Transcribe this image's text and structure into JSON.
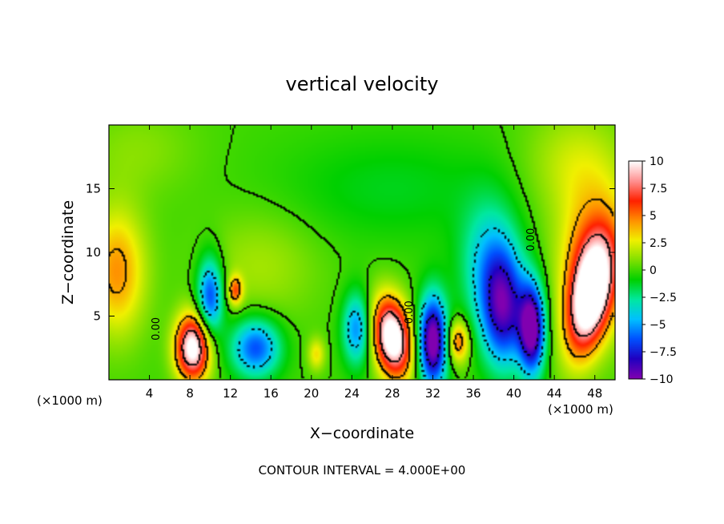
{
  "chart_data": {
    "type": "heatmap",
    "title": "vertical velocity",
    "xlabel": "X−coordinate",
    "ylabel": "Z−coordinate",
    "x_unit_left": "(×1000 m)",
    "x_unit_right": "(×1000 m)",
    "xlim": [
      0,
      50
    ],
    "ylim": [
      0,
      20
    ],
    "x_ticks": [
      4,
      8,
      12,
      16,
      20,
      24,
      28,
      32,
      36,
      40,
      44,
      48
    ],
    "x_tick_labels": [
      "4",
      "8",
      "12",
      "16",
      "20",
      "24",
      "28",
      "32",
      "36",
      "40",
      "44",
      "48"
    ],
    "y_ticks": [
      5,
      10,
      15
    ],
    "y_tick_labels": [
      "5",
      "10",
      "15"
    ],
    "colorbar": {
      "min": -10,
      "max": 10,
      "ticks": [
        10,
        7.5,
        5,
        2.5,
        0,
        -2.5,
        -5,
        -7.5,
        -10
      ],
      "tick_labels": [
        "10",
        "7.5",
        "5",
        "2.5",
        "0",
        "−2.5",
        "−5",
        "−7.5",
        "−10"
      ],
      "colors": [
        "#8000b0",
        "#2000c0",
        "#0050ff",
        "#00c0ff",
        "#00e8a0",
        "#00d000",
        "#80e000",
        "#f0f000",
        "#ff9000",
        "#ff2000",
        "#ff9090",
        "#ffffff"
      ]
    },
    "contour_labels": [
      {
        "text": "0.00",
        "x": 5.0,
        "z": 4.0,
        "rotation": -90
      },
      {
        "text": "0.00",
        "x": 30.0,
        "z": 5.3,
        "rotation": -90
      },
      {
        "text": "0.00",
        "x": 42.0,
        "z": 11.0,
        "rotation": -90
      }
    ],
    "features": [
      {
        "x": 0.8,
        "z": 8.5,
        "w": 4.5,
        "sx": 2.0,
        "sz": 3.5,
        "rot": 0
      },
      {
        "x": 8.3,
        "z": 2.5,
        "w": 11.0,
        "sx": 1.2,
        "sz": 1.8,
        "rot": 0
      },
      {
        "x": 28.0,
        "z": 3.3,
        "w": 12.0,
        "sx": 1.3,
        "sz": 2.2,
        "rot": -0.2
      },
      {
        "x": 34.5,
        "z": 3.0,
        "w": 5.5,
        "sx": 0.8,
        "sz": 1.2,
        "rot": 0
      },
      {
        "x": 47.5,
        "z": 6.5,
        "w": 11.0,
        "sx": 1.4,
        "sz": 3.2,
        "rot": 0.25
      },
      {
        "x": 48.0,
        "z": 9.5,
        "w": 5.0,
        "sx": 2.5,
        "sz": 4.0,
        "rot": 0
      },
      {
        "x": 12.5,
        "z": 7.0,
        "w": 5.0,
        "sx": 0.5,
        "sz": 0.8,
        "rot": 0
      },
      {
        "x": 20.5,
        "z": 2.0,
        "w": 3.0,
        "sx": 0.6,
        "sz": 0.9,
        "rot": 0
      },
      {
        "x": 10.0,
        "z": 6.5,
        "w": -7.0,
        "sx": 0.9,
        "sz": 2.2,
        "rot": 0
      },
      {
        "x": 14.5,
        "z": 2.5,
        "w": -6.5,
        "sx": 1.7,
        "sz": 1.6,
        "rot": 0
      },
      {
        "x": 24.5,
        "z": 4.0,
        "w": -5.5,
        "sx": 1.0,
        "sz": 2.0,
        "rot": 0
      },
      {
        "x": 32.0,
        "z": 3.0,
        "w": -11.0,
        "sx": 1.0,
        "sz": 2.5,
        "rot": 0
      },
      {
        "x": 39.0,
        "z": 5.5,
        "w": -8.0,
        "sx": 1.5,
        "sz": 3.2,
        "rot": 0
      },
      {
        "x": 41.8,
        "z": 4.0,
        "w": -10.5,
        "sx": 0.9,
        "sz": 2.5,
        "rot": 0
      },
      {
        "x": 37.5,
        "z": 9.0,
        "w": -4.0,
        "sx": 2.0,
        "sz": 3.5,
        "rot": 0
      },
      {
        "x": 28.0,
        "z": 15.0,
        "w": -1.2,
        "sx": 8.0,
        "sz": 3.0,
        "rot": 0
      },
      {
        "x": 15.0,
        "z": 9.0,
        "w": 1.5,
        "sx": 4.0,
        "sz": 3.0,
        "rot": 0
      },
      {
        "x": 3.0,
        "z": 18.0,
        "w": 1.0,
        "sx": 4.0,
        "sz": 2.5,
        "rot": 0
      },
      {
        "x": 46.0,
        "z": 17.0,
        "w": 2.0,
        "sx": 3.5,
        "sz": 3.0,
        "rot": 0
      }
    ]
  },
  "footer": {
    "contour_interval": "CONTOUR INTERVAL = 4.000E+00"
  }
}
